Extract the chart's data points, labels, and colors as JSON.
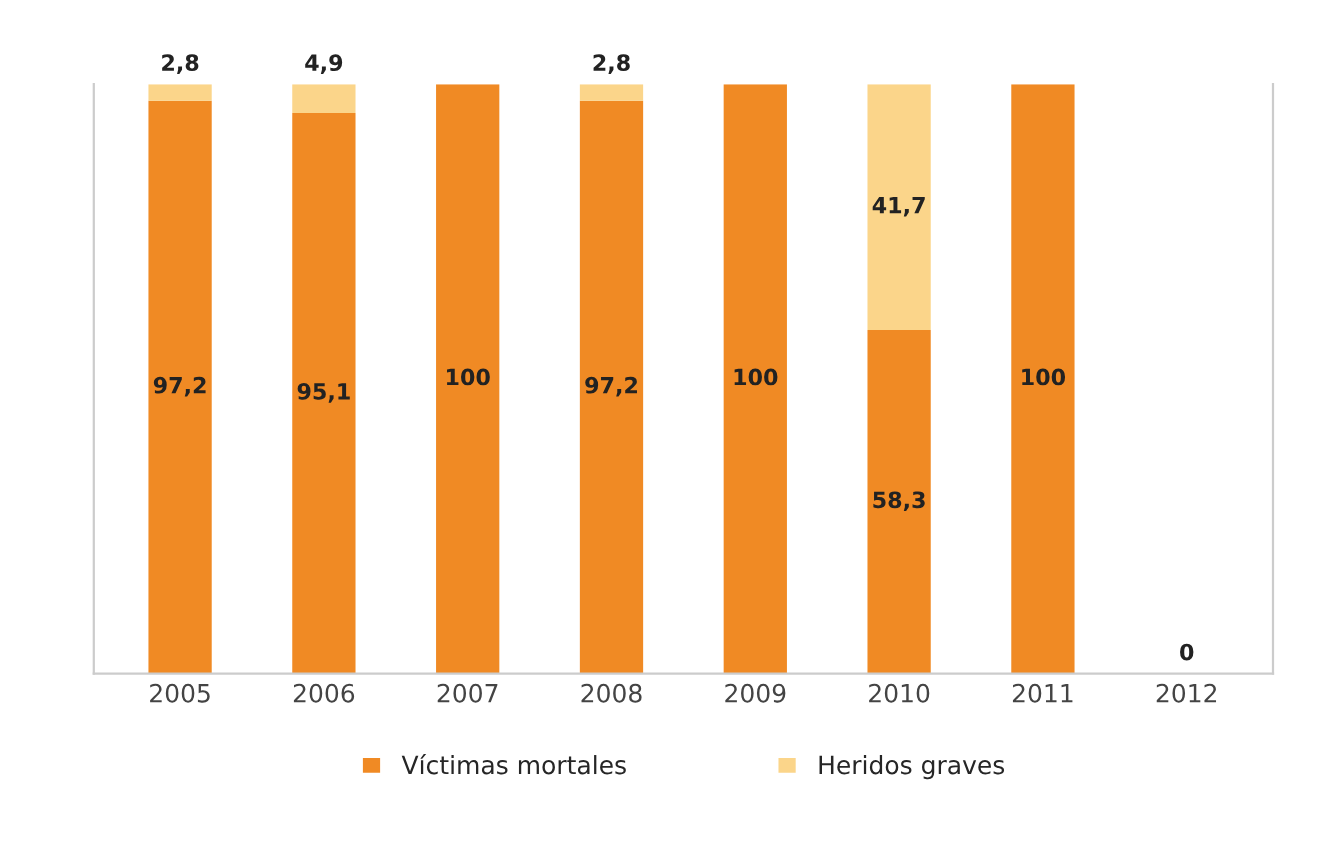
{
  "chart_data": {
    "type": "bar",
    "stacked": true,
    "categories": [
      "2005",
      "2006",
      "2007",
      "2008",
      "2009",
      "2010",
      "2011",
      "2012"
    ],
    "ylim": [
      0,
      100
    ],
    "tick_labels": "x",
    "grid": false,
    "legend": "bottom",
    "series": [
      {
        "name": "Víctimas mortales",
        "color": "#f08a24",
        "values": [
          97.2,
          95.1,
          100,
          97.2,
          100,
          58.3,
          100,
          0
        ],
        "value_labels": [
          "97,2",
          "95,1",
          "100",
          "97,2",
          "100",
          "58,3",
          "100",
          "0"
        ]
      },
      {
        "name": "Heridos graves",
        "color": "#fbd58a",
        "values": [
          2.8,
          4.9,
          0,
          2.8,
          0,
          41.7,
          0,
          0
        ],
        "value_labels": [
          "2,8",
          "4,9",
          null,
          "2,8",
          null,
          "41,7",
          null,
          null
        ]
      }
    ]
  }
}
